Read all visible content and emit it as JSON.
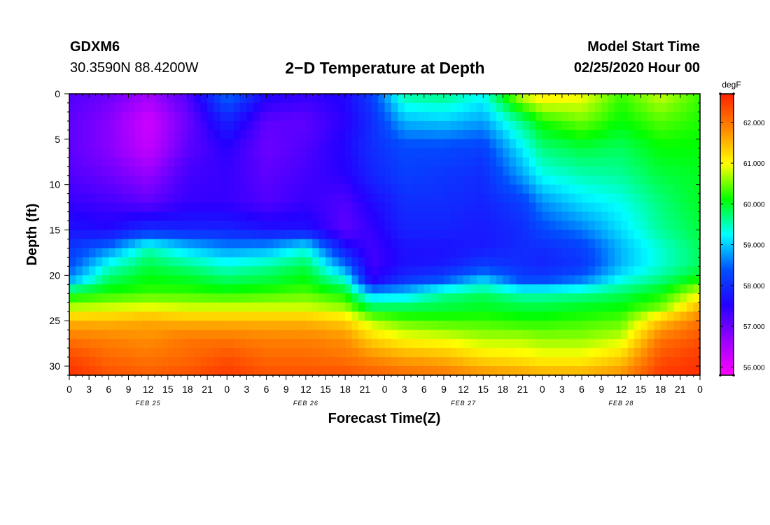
{
  "header": {
    "station_id": "GDXM6",
    "coords": "30.3590N 88.4200W",
    "title": "2−D Temperature at Depth",
    "model_label": "Model Start Time",
    "model_time": "02/25/2020 Hour 00"
  },
  "chart_data": {
    "type": "heatmap",
    "title": "2−D Temperature at Depth",
    "xlabel": "Forecast Time(Z)",
    "ylabel": "Depth (ft)",
    "x_range": [
      0,
      96
    ],
    "y_range": [
      0,
      31
    ],
    "x_ticks": [
      0,
      3,
      6,
      9,
      12,
      15,
      18,
      21,
      24,
      27,
      30,
      33,
      36,
      39,
      42,
      45,
      48,
      51,
      54,
      57,
      60,
      63,
      66,
      69,
      72,
      75,
      78,
      81,
      84,
      87,
      90,
      93,
      96
    ],
    "x_tick_labels": [
      "0",
      "3",
      "6",
      "9",
      "12",
      "15",
      "18",
      "21",
      "0",
      "3",
      "6",
      "9",
      "12",
      "15",
      "18",
      "21",
      "0",
      "3",
      "6",
      "9",
      "12",
      "15",
      "18",
      "21",
      "0",
      "3",
      "6",
      "9",
      "12",
      "15",
      "18",
      "21",
      "0"
    ],
    "y_ticks": [
      0,
      5,
      10,
      15,
      20,
      25,
      30
    ],
    "y_tick_labels": [
      "0",
      "5",
      "10",
      "15",
      "20",
      "25",
      "30"
    ],
    "day_labels": [
      {
        "hour": 12,
        "label": "FEB 25"
      },
      {
        "hour": 36,
        "label": "FEB 26"
      },
      {
        "hour": 60,
        "label": "FEB 27"
      },
      {
        "hour": 84,
        "label": "FEB 28"
      }
    ],
    "colorbar": {
      "unit": "degF",
      "min": 55.8,
      "max": 62.7,
      "ticks": [
        56.0,
        57.0,
        58.0,
        59.0,
        60.0,
        61.0,
        62.0
      ],
      "tick_labels": [
        "56.000",
        "57.000",
        "58.000",
        "59.000",
        "60.000",
        "61.000",
        "62.000"
      ],
      "colors": [
        "#ff00ff",
        "#9a00ff",
        "#2400ff",
        "#0050ff",
        "#00ffff",
        "#00ff00",
        "#ffff00",
        "#ff8800",
        "#ff2200"
      ]
    },
    "depths": [
      0,
      3,
      6,
      9,
      12,
      15,
      17,
      19,
      20.5,
      22,
      23.5,
      25,
      27,
      29,
      31
    ],
    "hours": [
      0,
      6,
      12,
      18,
      24,
      30,
      36,
      42,
      46,
      51,
      57,
      63,
      69,
      72,
      78,
      84,
      90,
      96
    ],
    "values": [
      [
        57.2,
        57.0,
        56.6,
        57.2,
        58.6,
        57.6,
        57.4,
        57.6,
        58.2,
        59.6,
        59.7,
        59.3,
        60.9,
        61.2,
        61.0,
        60.3,
        60.8,
        60.3
      ],
      [
        57.1,
        56.8,
        56.2,
        57.0,
        57.9,
        57.1,
        57.1,
        57.5,
        58.0,
        58.9,
        59.0,
        58.8,
        59.7,
        60.2,
        60.5,
        60.1,
        60.4,
        60.2
      ],
      [
        57.1,
        56.8,
        56.3,
        57.1,
        57.5,
        57.0,
        57.2,
        57.6,
        58.0,
        58.3,
        58.3,
        58.2,
        59.2,
        59.7,
        59.9,
        59.8,
        60.1,
        60.1
      ],
      [
        57.2,
        57.0,
        56.7,
        57.3,
        57.4,
        57.1,
        57.3,
        57.5,
        57.9,
        58.2,
        58.1,
        58.0,
        58.8,
        59.3,
        59.5,
        59.6,
        59.9,
        60.0
      ],
      [
        57.4,
        57.3,
        57.1,
        57.4,
        57.4,
        57.2,
        57.4,
        57.2,
        57.6,
        58.0,
        58.0,
        57.9,
        58.2,
        58.7,
        59.1,
        59.3,
        59.7,
        60.0
      ],
      [
        57.7,
        57.6,
        58.0,
        57.9,
        57.9,
        57.7,
        57.7,
        57.1,
        57.4,
        57.9,
        57.9,
        57.8,
        58.0,
        58.3,
        58.6,
        59.1,
        59.6,
        59.9
      ],
      [
        58.1,
        58.6,
        59.5,
        59.0,
        58.7,
        58.8,
        59.3,
        57.7,
        57.3,
        57.7,
        57.7,
        57.8,
        58.0,
        58.0,
        58.2,
        58.9,
        59.4,
        59.8
      ],
      [
        58.3,
        59.4,
        59.9,
        59.7,
        59.4,
        59.6,
        59.9,
        58.6,
        57.3,
        57.7,
        57.8,
        58.2,
        58.0,
        57.9,
        58.1,
        58.9,
        59.4,
        59.8
      ],
      [
        58.8,
        59.8,
        60.1,
        60.0,
        59.8,
        59.9,
        60.1,
        59.4,
        57.5,
        58.1,
        58.4,
        59.0,
        58.3,
        58.3,
        58.6,
        59.3,
        59.7,
        60.2
      ],
      [
        60.0,
        60.2,
        60.3,
        60.3,
        60.2,
        60.3,
        60.4,
        60.1,
        58.9,
        59.0,
        59.6,
        59.8,
        59.5,
        59.5,
        59.6,
        59.8,
        60.1,
        60.9
      ],
      [
        60.7,
        60.8,
        60.9,
        60.8,
        60.8,
        60.8,
        60.8,
        60.6,
        59.8,
        59.8,
        59.9,
        60.0,
        59.9,
        59.9,
        60.0,
        60.1,
        60.5,
        61.5
      ],
      [
        61.5,
        61.5,
        61.6,
        61.5,
        61.5,
        61.5,
        61.5,
        61.3,
        60.7,
        60.4,
        60.3,
        60.3,
        60.2,
        60.2,
        60.3,
        60.4,
        61.4,
        62.0
      ],
      [
        62.0,
        61.9,
        61.8,
        62.0,
        62.0,
        61.9,
        61.9,
        61.8,
        61.3,
        61.0,
        60.9,
        60.7,
        60.7,
        60.6,
        60.6,
        60.8,
        62.0,
        62.3
      ],
      [
        62.4,
        62.1,
        62.0,
        62.1,
        62.3,
        62.1,
        62.1,
        62.0,
        61.8,
        61.6,
        61.5,
        61.2,
        61.1,
        61.0,
        61.0,
        61.3,
        62.3,
        62.5
      ],
      [
        62.6,
        62.3,
        62.2,
        62.3,
        62.5,
        62.3,
        62.3,
        62.3,
        62.2,
        62.1,
        62.0,
        61.8,
        61.7,
        61.6,
        61.6,
        61.8,
        62.5,
        62.6
      ]
    ]
  }
}
